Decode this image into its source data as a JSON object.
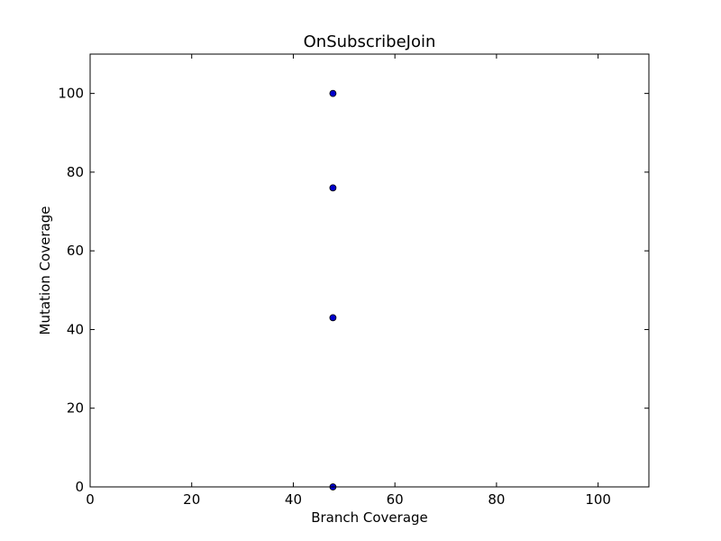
{
  "chart_data": {
    "type": "scatter",
    "title": "OnSubscribeJoin",
    "xlabel": "Branch Coverage",
    "ylabel": "Mutation Coverage",
    "xlim": [
      0,
      110
    ],
    "ylim": [
      0,
      110
    ],
    "xticks": [
      0,
      20,
      40,
      60,
      80,
      100
    ],
    "yticks": [
      0,
      20,
      40,
      60,
      80,
      100
    ],
    "grid": false,
    "points": [
      {
        "x": 47.8,
        "y": 100
      },
      {
        "x": 47.8,
        "y": 76
      },
      {
        "x": 47.8,
        "y": 43
      },
      {
        "x": 47.8,
        "y": 0
      }
    ],
    "marker_color": "#0000cc"
  }
}
